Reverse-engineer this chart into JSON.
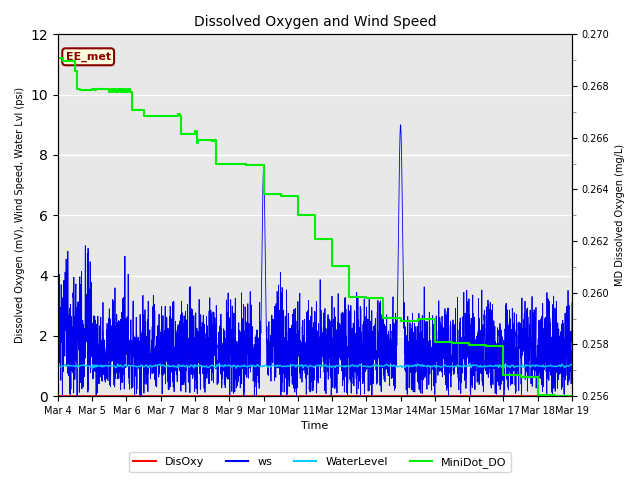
{
  "title": "Dissolved Oxygen and Wind Speed",
  "xlabel": "Time",
  "ylabel_left": "Dissolved Oxygen (mV), Wind Speed, Water Lvl (psi)",
  "ylabel_right": "MD Dissolved Oxygen (mg/L)",
  "annotation": "EE_met",
  "ylim_left": [
    0,
    12
  ],
  "ylim_right": [
    0.256,
    0.27
  ],
  "yticks_left": [
    0,
    2,
    4,
    6,
    8,
    10,
    12
  ],
  "yticks_right": [
    0.256,
    0.258,
    0.26,
    0.262,
    0.264,
    0.266,
    0.268,
    0.27
  ],
  "xtick_labels": [
    "Mar 4",
    "Mar 5",
    "Mar 6",
    "Mar 7",
    "Mar 8",
    "Mar 9",
    "Mar 10",
    "Mar 11",
    "Mar 12",
    "Mar 13",
    "Mar 14",
    "Mar 15",
    "Mar 16",
    "Mar 17",
    "Mar 18",
    "Mar 19"
  ],
  "plot_bg_color": "#e8e8e8",
  "disoxy_color": "#ff0000",
  "ws_color": "#0000ee",
  "waterlevel_color": "#00ccff",
  "minidot_color": "#00ee00",
  "minidot_t": [
    0,
    0.15,
    0.15,
    0.5,
    0.5,
    0.55,
    0.55,
    0.65,
    0.65,
    1.0,
    1.0,
    1.05,
    1.05,
    1.1,
    1.1,
    1.5,
    1.5,
    1.55,
    1.55,
    1.6,
    1.6,
    1.65,
    1.65,
    1.7,
    1.7,
    1.75,
    1.75,
    1.8,
    1.8,
    1.85,
    1.85,
    1.9,
    1.9,
    1.95,
    1.95,
    2.0,
    2.0,
    2.05,
    2.05,
    2.1,
    2.1,
    2.15,
    2.15,
    2.5,
    2.5,
    3.0,
    3.0,
    3.5,
    3.5,
    3.55,
    3.55,
    3.6,
    3.6,
    4.0,
    4.0,
    4.05,
    4.05,
    4.1,
    4.1,
    4.5,
    4.5,
    4.55,
    4.55,
    4.6,
    4.6,
    5.0,
    5.0,
    5.5,
    5.5,
    6.0,
    6.0,
    6.5,
    6.5,
    7.0,
    7.0,
    7.5,
    7.5,
    8.0,
    8.0,
    8.5,
    8.5,
    9.0,
    9.0,
    9.5,
    9.5,
    10.0,
    10.0,
    10.5,
    10.5,
    11.0,
    11.0,
    11.5,
    11.5,
    12.0,
    12.0,
    12.5,
    12.5,
    13.0,
    13.0,
    13.5,
    13.5,
    14.0,
    14.0,
    14.5,
    14.5,
    15.0
  ],
  "minidot_v": [
    11.2,
    11.2,
    11.1,
    11.1,
    10.8,
    10.8,
    10.2,
    10.2,
    10.15,
    10.15,
    10.2,
    10.2,
    10.15,
    10.15,
    10.2,
    10.2,
    10.1,
    10.1,
    10.2,
    10.2,
    10.1,
    10.1,
    10.2,
    10.2,
    10.1,
    10.1,
    10.2,
    10.2,
    10.1,
    10.1,
    10.2,
    10.2,
    10.1,
    10.1,
    10.2,
    10.2,
    10.1,
    10.1,
    10.2,
    10.2,
    10.1,
    10.1,
    9.5,
    9.5,
    9.3,
    9.3,
    9.3,
    9.3,
    9.35,
    9.35,
    9.3,
    9.3,
    8.7,
    8.7,
    8.8,
    8.8,
    8.4,
    8.4,
    8.5,
    8.5,
    8.45,
    8.45,
    8.5,
    8.5,
    7.7,
    7.7,
    7.7,
    7.7,
    7.65,
    7.65,
    6.7,
    6.7,
    6.65,
    6.65,
    6.0,
    6.0,
    5.2,
    5.2,
    4.3,
    4.3,
    3.3,
    3.3,
    3.25,
    3.25,
    2.6,
    2.6,
    2.5,
    2.5,
    2.55,
    2.55,
    1.8,
    1.8,
    1.75,
    1.75,
    1.7,
    1.7,
    1.65,
    1.65,
    0.7,
    0.7,
    0.65,
    0.65,
    0.05,
    0.05,
    0.0,
    0.0
  ],
  "ws_seed": 12345,
  "n_days": 15
}
